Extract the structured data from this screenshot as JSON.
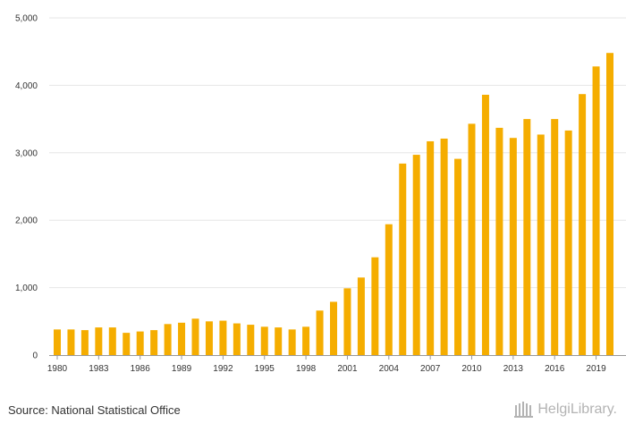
{
  "chart_data": {
    "type": "bar",
    "title": "",
    "xlabel": "",
    "ylabel": "",
    "ylim": [
      0,
      5000
    ],
    "yticks": [
      0,
      1000,
      2000,
      3000,
      4000,
      5000
    ],
    "ytick_labels": [
      "0",
      "1,000",
      "2,000",
      "3,000",
      "4,000",
      "5,000"
    ],
    "categories": [
      1980,
      1981,
      1982,
      1983,
      1984,
      1985,
      1986,
      1987,
      1988,
      1989,
      1990,
      1991,
      1992,
      1993,
      1994,
      1995,
      1996,
      1997,
      1998,
      1999,
      2000,
      2001,
      2002,
      2003,
      2004,
      2005,
      2006,
      2007,
      2008,
      2009,
      2010,
      2011,
      2012,
      2013,
      2014,
      2015,
      2016,
      2017,
      2018,
      2019,
      2020
    ],
    "xtick_labels": [
      "1980",
      "1983",
      "1986",
      "1989",
      "1992",
      "1995",
      "1998",
      "2001",
      "2004",
      "2007",
      "2010",
      "2013",
      "2016",
      "2019"
    ],
    "values": [
      380,
      380,
      370,
      410,
      410,
      330,
      350,
      370,
      460,
      480,
      540,
      500,
      510,
      470,
      450,
      420,
      410,
      380,
      420,
      660,
      790,
      990,
      1150,
      1450,
      1940,
      2840,
      2970,
      3170,
      3210,
      2910,
      3430,
      3860,
      3370,
      3220,
      3500,
      3270,
      3500,
      3330,
      3870,
      4280,
      4480
    ],
    "bar_color": "#f5ad00",
    "grid": true
  },
  "footer": {
    "source": "Source: National Statistical Office",
    "logo_text": "HelgiLibrary."
  },
  "colors": {
    "grid": "#e6e6e6",
    "axis": "#999999",
    "logo": "#b3b3b3"
  }
}
